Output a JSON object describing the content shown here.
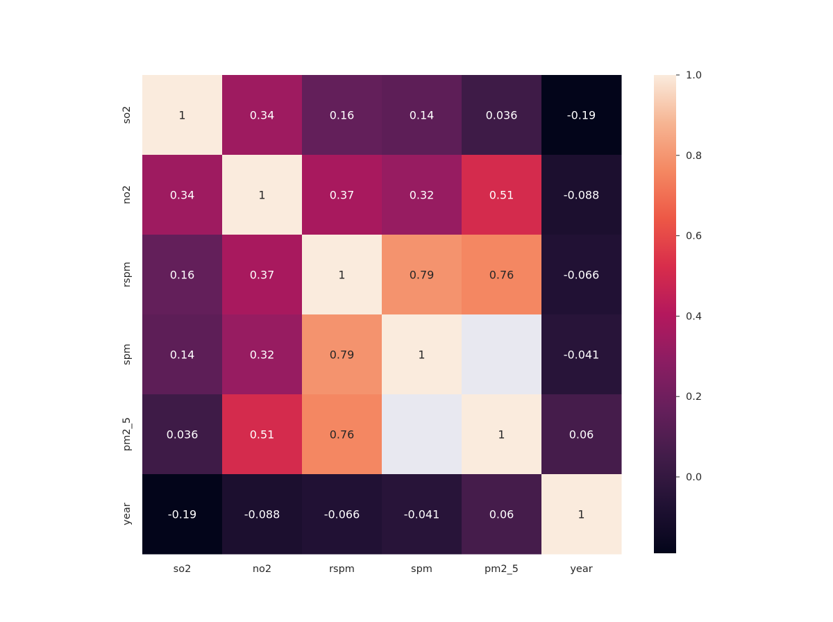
{
  "chart_data": {
    "type": "heatmap",
    "title": "",
    "xlabel": "",
    "ylabel": "",
    "x_categories": [
      "so2",
      "no2",
      "rspm",
      "spm",
      "pm2_5",
      "year"
    ],
    "y_categories": [
      "so2",
      "no2",
      "rspm",
      "spm",
      "pm2_5",
      "year"
    ],
    "values": [
      [
        1,
        0.34,
        0.16,
        0.14,
        0.036,
        -0.19
      ],
      [
        0.34,
        1,
        0.37,
        0.32,
        0.51,
        -0.088
      ],
      [
        0.16,
        0.37,
        1,
        0.79,
        0.76,
        -0.066
      ],
      [
        0.14,
        0.32,
        0.79,
        1,
        null,
        -0.041
      ],
      [
        0.036,
        0.51,
        0.76,
        null,
        1,
        0.06
      ],
      [
        -0.19,
        -0.088,
        -0.066,
        -0.041,
        0.06,
        1
      ]
    ],
    "annotations": [
      [
        "1",
        "0.34",
        "0.16",
        "0.14",
        "0.036",
        "-0.19"
      ],
      [
        "0.34",
        "1",
        "0.37",
        "0.32",
        "0.51",
        "-0.088"
      ],
      [
        "0.16",
        "0.37",
        "1",
        "0.79",
        "0.76",
        "-0.066"
      ],
      [
        "0.14",
        "0.32",
        "0.79",
        "1",
        "",
        "-0.041"
      ],
      [
        "0.036",
        "0.51",
        "0.76",
        "",
        "1",
        "0.06"
      ],
      [
        "-0.19",
        "-0.088",
        "-0.066",
        "-0.041",
        "0.06",
        "1"
      ]
    ],
    "colorbar": {
      "range": [
        -0.19,
        1.0
      ],
      "ticks": [
        0.0,
        0.2,
        0.4,
        0.6,
        0.8,
        1.0
      ],
      "tick_labels": [
        "0.0",
        "0.2",
        "0.4",
        "0.6",
        "0.8",
        "1.0"
      ],
      "colormap": "rocket"
    },
    "missing_color": "#e8e8f0",
    "grid": false,
    "legend": "colorbar-right"
  }
}
